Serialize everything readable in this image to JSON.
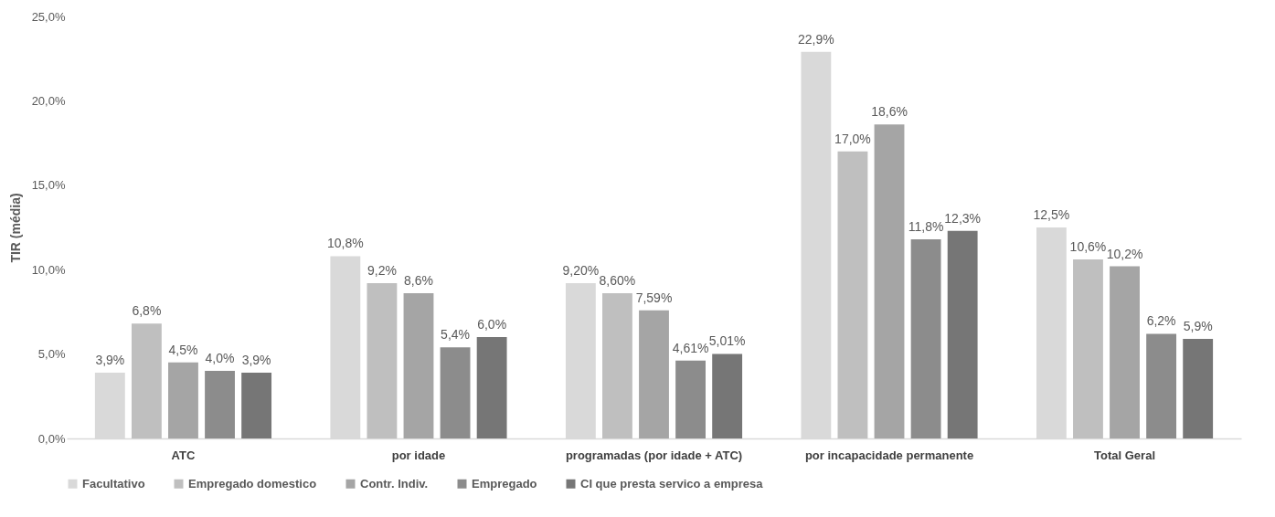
{
  "chart_data": {
    "type": "bar",
    "ylabel": "TIR (média)",
    "categories": [
      "ATC",
      "por idade",
      "programadas (por idade + ATC)",
      "por incapacidade permanente",
      "Total Geral"
    ],
    "series": [
      {
        "name": "Facultativo",
        "color": "#d9d9d9",
        "values": [
          3.9,
          10.8,
          9.2,
          22.9,
          12.5
        ],
        "value_labels": [
          "3,9%",
          "10,8%",
          "9,20%",
          "22,9%",
          "12,5%"
        ]
      },
      {
        "name": "Empregado domestico",
        "color": "#bfbfbf",
        "values": [
          6.8,
          9.2,
          8.6,
          17.0,
          10.6
        ],
        "value_labels": [
          "6,8%",
          "9,2%",
          "8,60%",
          "17,0%",
          "10,6%"
        ]
      },
      {
        "name": "Contr. Indiv.",
        "color": "#a5a5a5",
        "values": [
          4.5,
          8.6,
          7.59,
          18.6,
          10.2
        ],
        "value_labels": [
          "4,5%",
          "8,6%",
          "7,59%",
          "18,6%",
          "10,2%"
        ]
      },
      {
        "name": "Empregado",
        "color": "#8c8c8c",
        "values": [
          4.0,
          5.4,
          4.61,
          11.8,
          6.2
        ],
        "value_labels": [
          "4,0%",
          "5,4%",
          "4,61%",
          "11,8%",
          "6,2%"
        ]
      },
      {
        "name": "CI que presta servico a empresa",
        "color": "#767676",
        "values": [
          3.9,
          6.0,
          5.01,
          12.3,
          5.9
        ],
        "value_labels": [
          "3,9%",
          "6,0%",
          "5,01%",
          "12,3%",
          "5,9%"
        ]
      }
    ],
    "ylim": [
      0,
      25
    ],
    "yticks": [
      {
        "value": 0,
        "label": "0,0%"
      },
      {
        "value": 5,
        "label": "5,0%"
      },
      {
        "value": 10,
        "label": "10,0%"
      },
      {
        "value": 15,
        "label": "15,0%"
      },
      {
        "value": 20,
        "label": "20,0%"
      },
      {
        "value": 25,
        "label": "25,0%"
      }
    ],
    "grid": false,
    "legend": "bottom"
  }
}
